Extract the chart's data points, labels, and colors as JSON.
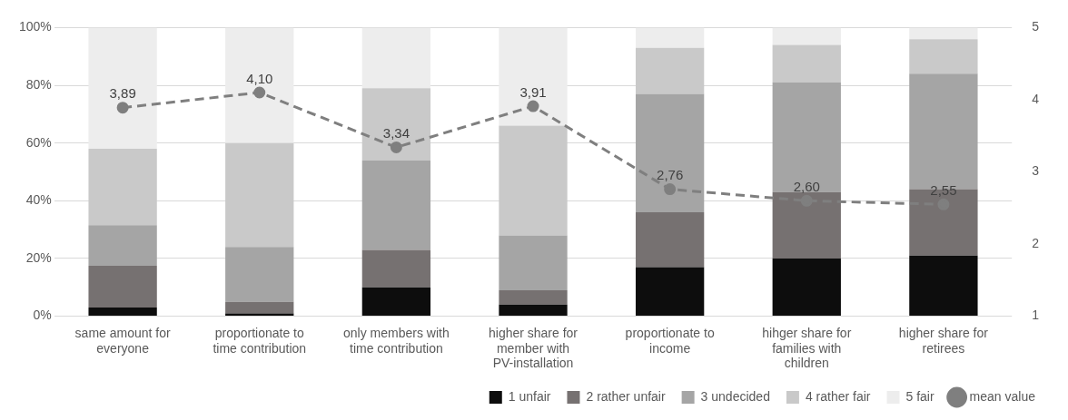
{
  "chart_data": {
    "type": "bar",
    "stacked": true,
    "categories": [
      "same amount for everyone",
      "proportionate to time contribution",
      "only members with time contribution",
      "higher share for member with PV-installation",
      "proportionate to income",
      "hihger share for families with children",
      "higher share for retirees"
    ],
    "series": [
      {
        "name": "1 unfair",
        "color": "#0d0d0d",
        "values": [
          3,
          1,
          10,
          4,
          17,
          20,
          21
        ]
      },
      {
        "name": "2 rather unfair",
        "color": "#767171",
        "values": [
          14.5,
          4,
          13,
          5,
          19,
          23,
          23
        ]
      },
      {
        "name": "3 undecided",
        "color": "#a5a5a5",
        "values": [
          14,
          19,
          31,
          19,
          41,
          38,
          40
        ]
      },
      {
        "name": "4 rather fair",
        "color": "#c9c9c9",
        "values": [
          26.5,
          36,
          25,
          38,
          16,
          13,
          12
        ]
      },
      {
        "name": "5 fair",
        "color": "#ededed",
        "values": [
          42,
          40,
          21,
          34,
          7,
          6,
          4
        ]
      },
      {
        "name": "mean value",
        "type": "line",
        "axis": "y2",
        "color": "#7f7f7f",
        "marker": "circle",
        "line_style": "dashed",
        "values": [
          3.89,
          4.1,
          3.34,
          3.91,
          2.76,
          2.6,
          2.55
        ],
        "value_labels": [
          "3,89",
          "4,10",
          "3,34",
          "3,91",
          "2,76",
          "2,60",
          "2,55"
        ]
      }
    ],
    "ylim": [
      0,
      100
    ],
    "yticks": [
      {
        "value": 0,
        "label": "0%"
      },
      {
        "value": 20,
        "label": "20%"
      },
      {
        "value": 40,
        "label": "40%"
      },
      {
        "value": 60,
        "label": "60%"
      },
      {
        "value": 80,
        "label": "80%"
      },
      {
        "value": 100,
        "label": "100%"
      }
    ],
    "y2lim": [
      1,
      5
    ],
    "y2ticks": [
      1,
      2,
      3,
      4,
      5
    ],
    "grid": "y",
    "legend": "bottom"
  }
}
